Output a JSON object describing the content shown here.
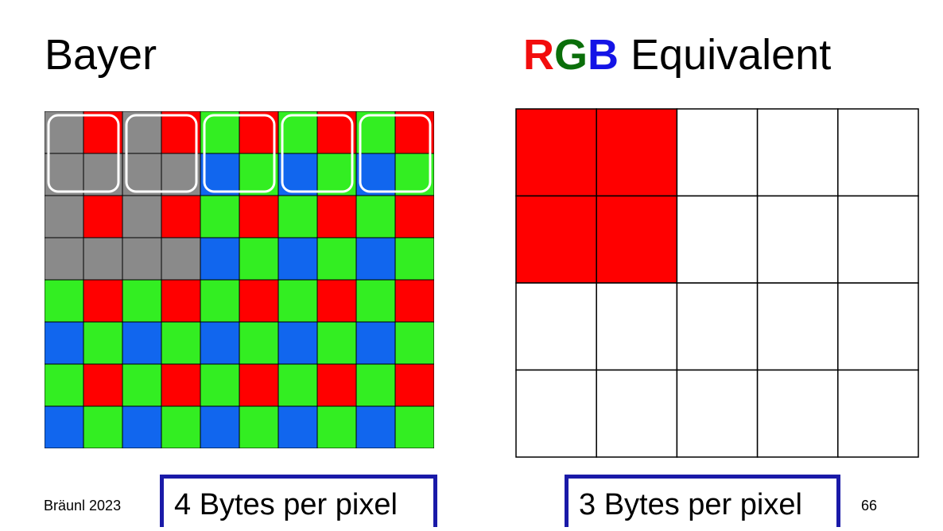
{
  "left_title": "Bayer",
  "right_title": {
    "r": "R",
    "g": "G",
    "b": "B",
    "rest": " Equivalent"
  },
  "bayer": {
    "rows": 8,
    "cols": 10,
    "pattern_even_row": [
      "G",
      "R"
    ],
    "pattern_odd_row": [
      "B",
      "G"
    ],
    "grayed_cells": [
      [
        0,
        0
      ],
      [
        1,
        0
      ],
      [
        1,
        1
      ],
      [
        0,
        2
      ],
      [
        1,
        2
      ],
      [
        1,
        3
      ],
      [
        2,
        0
      ],
      [
        3,
        0
      ],
      [
        3,
        1
      ],
      [
        2,
        2
      ],
      [
        3,
        2
      ],
      [
        3,
        3
      ]
    ],
    "pixel_groups_highlighted": [
      {
        "row": 0,
        "col": 0
      },
      {
        "row": 0,
        "col": 2
      },
      {
        "row": 0,
        "col": 4
      },
      {
        "row": 0,
        "col": 6
      },
      {
        "row": 0,
        "col": 8
      }
    ],
    "colors": {
      "R": "#ff0000",
      "G": "#33ee22",
      "B": "#1166ee",
      "gray": "#8a8a8a",
      "highlight": "#ffffff"
    }
  },
  "rgb": {
    "rows": 4,
    "cols": 5,
    "filled_cells": [
      [
        0,
        0
      ],
      [
        0,
        1
      ],
      [
        1,
        0
      ],
      [
        1,
        1
      ]
    ],
    "fill_color": "#ff0000"
  },
  "captions": {
    "left": "4 Bytes per pixel",
    "right": "3 Bytes per pixel"
  },
  "footer": {
    "author": "Bräunl 2023",
    "page": "66"
  }
}
